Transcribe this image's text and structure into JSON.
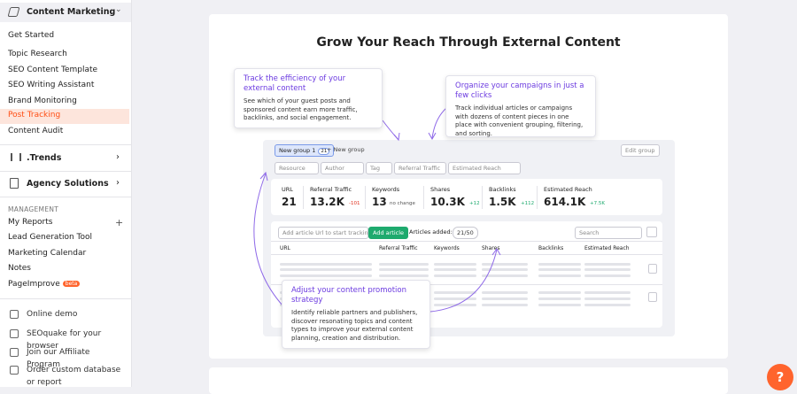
{
  "sidebar": {
    "section": "Content Marketing",
    "items": [
      "Get Started",
      "Topic Research",
      "SEO Content Template",
      "SEO Writing Assistant",
      "Brand Monitoring",
      "Post Tracking",
      "Content Audit"
    ],
    "trends": ".Trends",
    "agency": "Agency Solutions",
    "management_label": "MANAGEMENT",
    "management": [
      "My Reports",
      "Lead Generation Tool",
      "Marketing Calendar",
      "Notes",
      "PageImprove"
    ],
    "beta": "beta",
    "links": [
      "Online demo",
      "SEOquake for your browser",
      "Join our Affiliate Program",
      "Order custom database or report"
    ]
  },
  "main": {
    "title": "Grow Your Reach Through External Content",
    "callouts": [
      {
        "title": "Track the efficiency of your external content",
        "body": "See which of your guest posts and sponsored content earn more traffic, backlinks, and social engagement."
      },
      {
        "title": "Organize your campaigns in just a few clicks",
        "body": "Track individual articles or campaigns with dozens of content pieces in one place with convenient grouping, filtering, and sorting."
      },
      {
        "title": "Adjust your content promotion strategy",
        "body": "Identify reliable partners and publishers, discover resonating topics and content types to improve your external content planning, creation and distribution."
      }
    ],
    "mock": {
      "group": "New group 1",
      "group_count": "21",
      "new_group": "+ New group",
      "edit_group": "Edit group",
      "filters": [
        "Resource",
        "Author",
        "Tag",
        "Referral Traffic",
        "Estimated Reach"
      ],
      "stats": [
        {
          "label": "URL",
          "value": "21",
          "delta": ""
        },
        {
          "label": "Referral Traffic",
          "value": "13.2K",
          "delta": "-101"
        },
        {
          "label": "Keywords",
          "value": "13",
          "delta": "no change"
        },
        {
          "label": "Shares",
          "value": "10.3K",
          "delta": "+12"
        },
        {
          "label": "Backlinks",
          "value": "1.5K",
          "delta": "+112"
        },
        {
          "label": "Estimated Reach",
          "value": "614.1K",
          "delta": "+7.5K"
        }
      ],
      "input_placeholder": "Add article Url to start tracking",
      "add_button": "Add article",
      "articles_added": "Articles added:",
      "articles_count": "21/50",
      "search": "Search",
      "columns": [
        "URL",
        "Referral Traffic",
        "Keywords",
        "Shares",
        "Backlinks",
        "Estimated Reach"
      ]
    }
  },
  "help": "?"
}
